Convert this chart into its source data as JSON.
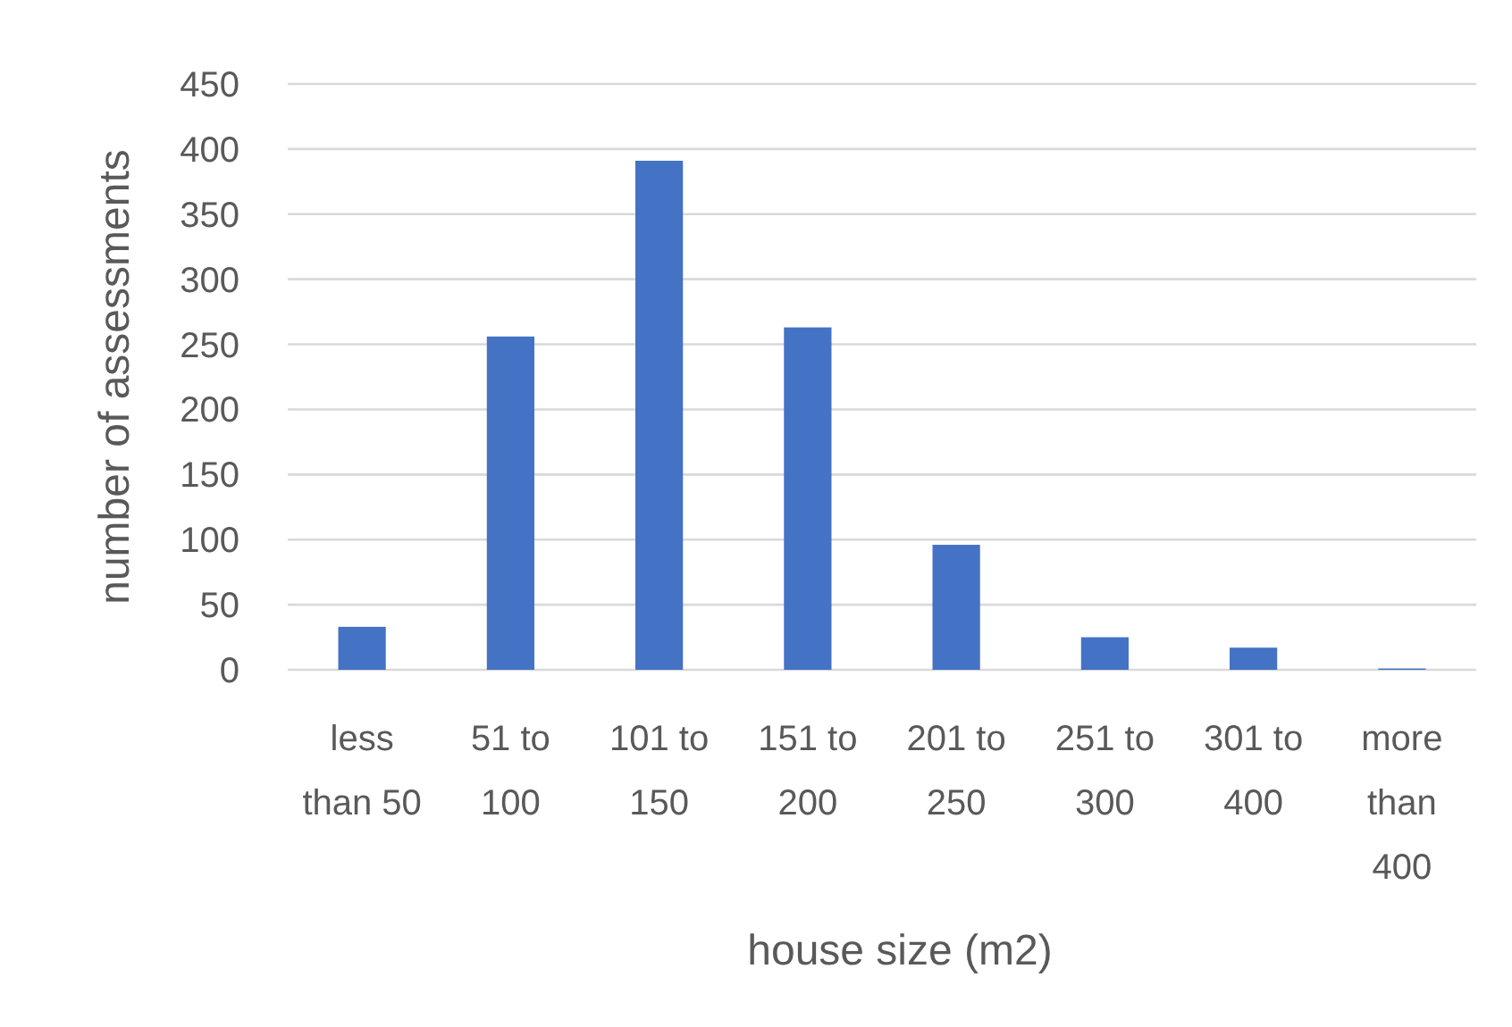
{
  "chart_data": {
    "type": "bar",
    "xlabel": "house size (m2)",
    "ylabel": "number of assessments",
    "categories": [
      "less than 50",
      "51 to 100",
      "101 to 150",
      "151 to 200",
      "201 to 250",
      "251 to 300",
      "301 to 400",
      "more than 400"
    ],
    "values": [
      33,
      256,
      391,
      263,
      96,
      25,
      17,
      1
    ],
    "color": "#4472c4",
    "ylim": [
      0,
      450
    ],
    "yticks": [
      0,
      50,
      100,
      150,
      200,
      250,
      300,
      350,
      400,
      450
    ],
    "grid": "y"
  }
}
